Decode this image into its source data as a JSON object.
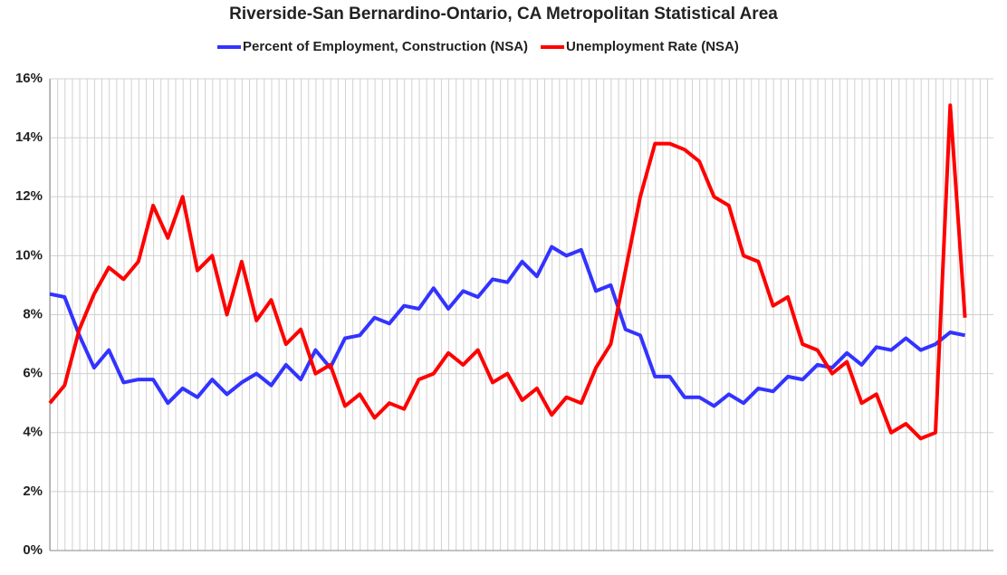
{
  "chart_data": {
    "type": "line",
    "title": "Riverside-San Bernardino-Ontario, CA Metropolitan Statistical Area",
    "categories": [
      null,
      null,
      null,
      null,
      null,
      null,
      null,
      null,
      null,
      null,
      null,
      null,
      null,
      null,
      null,
      null,
      null,
      null,
      null,
      null,
      null,
      null,
      null,
      null,
      null,
      null,
      null,
      null,
      null,
      null,
      null,
      null,
      null,
      null,
      null,
      null,
      null,
      null,
      null,
      null,
      null,
      null,
      null,
      null,
      null,
      null,
      null,
      null,
      null,
      null,
      null,
      null,
      null,
      null,
      null,
      null,
      null,
      null,
      null,
      null,
      null,
      null,
      null
    ],
    "series": [
      {
        "name": "Percent of Employment, Construction (NSA)",
        "color": "#3333ff",
        "values": [
          8.7,
          8.6,
          7.3,
          6.2,
          6.8,
          5.7,
          5.8,
          5.8,
          5.0,
          5.5,
          5.2,
          5.8,
          5.3,
          5.7,
          6.0,
          5.6,
          6.3,
          5.8,
          6.8,
          6.2,
          7.2,
          7.3,
          7.9,
          7.7,
          8.3,
          8.2,
          8.9,
          8.2,
          8.8,
          8.6,
          9.2,
          9.1,
          9.8,
          9.3,
          10.3,
          10.0,
          10.2,
          8.8,
          9.0,
          7.5,
          7.3,
          5.9,
          5.9,
          5.2,
          5.2,
          4.9,
          5.3,
          5.0,
          5.5,
          5.4,
          5.9,
          5.8,
          6.3,
          6.2,
          6.7,
          6.3,
          6.9,
          6.8,
          7.2,
          6.8,
          7.0,
          7.4,
          7.3
        ]
      },
      {
        "name": "Unemployment Rate (NSA)",
        "color": "#ff0000",
        "values": [
          5.0,
          5.6,
          7.5,
          8.7,
          9.6,
          9.2,
          9.8,
          11.7,
          10.6,
          12.0,
          9.5,
          10.0,
          8.0,
          9.8,
          7.8,
          8.5,
          7.0,
          7.5,
          6.0,
          6.3,
          4.9,
          5.3,
          4.5,
          5.0,
          4.8,
          5.8,
          6.0,
          6.7,
          6.3,
          6.8,
          5.7,
          6.0,
          5.1,
          5.5,
          4.6,
          5.2,
          5.0,
          6.2,
          7.0,
          9.5,
          12.0,
          13.8,
          13.8,
          13.6,
          13.2,
          12.0,
          11.7,
          10.0,
          9.8,
          8.3,
          8.6,
          7.0,
          6.8,
          6.0,
          6.4,
          5.0,
          5.3,
          4.0,
          4.3,
          3.8,
          4.0,
          15.1,
          7.9
        ]
      }
    ],
    "ylim": [
      0,
      16
    ],
    "yticks": [
      {
        "value": 0,
        "label": "0%"
      },
      {
        "value": 2,
        "label": "2%"
      },
      {
        "value": 4,
        "label": "4%"
      },
      {
        "value": 6,
        "label": "6%"
      },
      {
        "value": 8,
        "label": "8%"
      },
      {
        "value": 10,
        "label": "10%"
      },
      {
        "value": 12,
        "label": "12%"
      },
      {
        "value": 14,
        "label": "14%"
      },
      {
        "value": 16,
        "label": "16%"
      }
    ],
    "grid": true,
    "legend": "top"
  }
}
